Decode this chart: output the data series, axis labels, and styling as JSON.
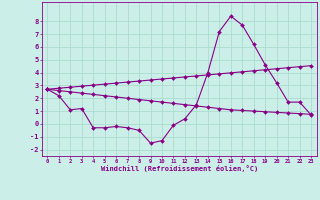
{
  "xlabel": "Windchill (Refroidissement éolien,°C)",
  "background_color": "#cceee8",
  "grid_color": "#aaddcc",
  "line_color": "#880088",
  "hours": [
    0,
    1,
    2,
    3,
    4,
    5,
    6,
    7,
    8,
    9,
    10,
    11,
    12,
    13,
    14,
    15,
    16,
    17,
    18,
    19,
    20,
    21,
    22,
    23
  ],
  "temp": [
    2.7,
    2.2,
    1.1,
    1.2,
    -0.3,
    -0.3,
    -0.2,
    -0.3,
    -0.5,
    -1.5,
    -1.3,
    -0.1,
    0.4,
    1.5,
    4.0,
    7.2,
    8.4,
    7.7,
    6.2,
    4.6,
    3.2,
    1.7,
    1.7,
    0.7
  ],
  "reg1": [
    2.7,
    2.78,
    2.86,
    2.94,
    3.02,
    3.1,
    3.18,
    3.26,
    3.34,
    3.42,
    3.5,
    3.58,
    3.66,
    3.74,
    3.82,
    3.9,
    3.98,
    4.06,
    4.14,
    4.22,
    4.3,
    4.38,
    4.46,
    4.54
  ],
  "reg2": [
    2.7,
    2.6,
    2.5,
    2.4,
    2.3,
    2.2,
    2.1,
    2.0,
    1.9,
    1.8,
    1.7,
    1.6,
    1.5,
    1.4,
    1.3,
    1.2,
    1.1,
    1.05,
    1.0,
    0.95,
    0.9,
    0.85,
    0.8,
    0.75
  ],
  "ylim": [
    -2.5,
    9.5
  ],
  "yticks": [
    -2,
    -1,
    0,
    1,
    2,
    3,
    4,
    5,
    6,
    7,
    8
  ],
  "xticks": [
    0,
    1,
    2,
    3,
    4,
    5,
    6,
    7,
    8,
    9,
    10,
    11,
    12,
    13,
    14,
    15,
    16,
    17,
    18,
    19,
    20,
    21,
    22,
    23
  ]
}
